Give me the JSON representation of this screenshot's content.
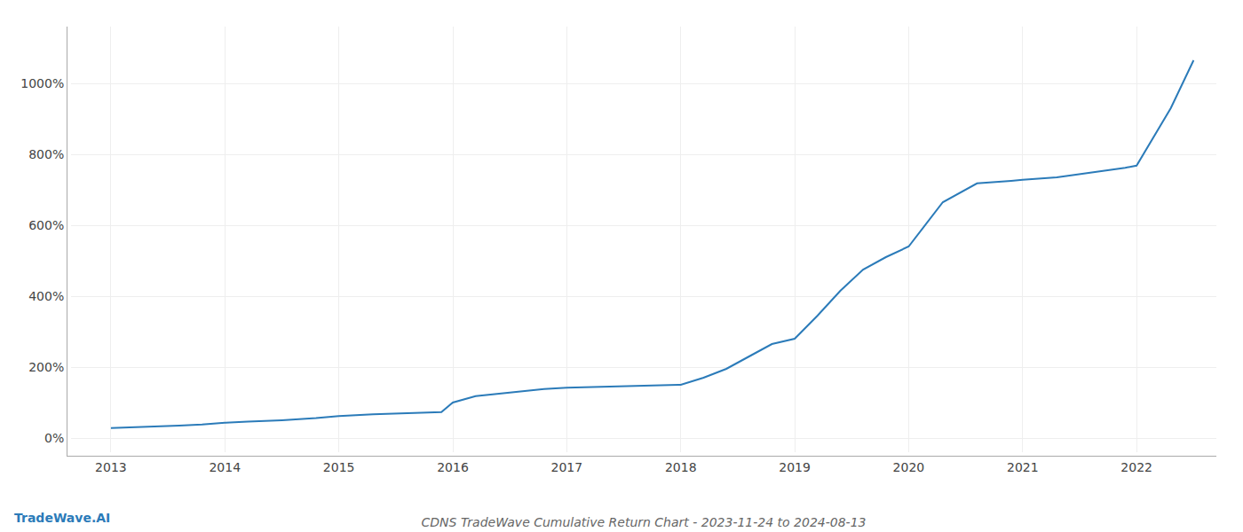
{
  "chart_data": {
    "type": "line",
    "title": "CDNS TradeWave Cumulative Return Chart - 2023-11-24 to 2024-08-13",
    "annotations": [
      {
        "text": "TradeWave.AI"
      }
    ],
    "color": "#2b7bb9",
    "grid": true,
    "x": [
      2013.0,
      2013.1,
      2013.2,
      2013.4,
      2013.6,
      2013.8,
      2014.0,
      2014.2,
      2014.5,
      2014.8,
      2015.0,
      2015.3,
      2015.6,
      2015.9,
      2016.0,
      2016.2,
      2016.5,
      2016.8,
      2017.0,
      2017.3,
      2017.6,
      2017.9,
      2018.0,
      2018.2,
      2018.4,
      2018.6,
      2018.8,
      2019.0,
      2019.2,
      2019.4,
      2019.6,
      2019.8,
      2020.0,
      2020.3,
      2020.6,
      2020.9,
      2021.0,
      2021.3,
      2021.6,
      2021.9,
      2022.0,
      2022.3,
      2022.5
    ],
    "values": [
      28,
      29,
      30,
      32,
      35,
      38,
      43,
      46,
      50,
      56,
      62,
      67,
      70,
      73,
      100,
      118,
      128,
      138,
      142,
      144,
      146,
      148,
      150,
      170,
      195,
      230,
      265,
      280,
      345,
      415,
      475,
      510,
      540,
      665,
      718,
      725,
      728,
      735,
      748,
      762,
      768,
      930,
      1065
    ],
    "xlim": [
      2012.65,
      2022.7
    ],
    "xticks": [
      2013,
      2014,
      2015,
      2016,
      2017,
      2018,
      2019,
      2020,
      2021,
      2022
    ],
    "ylim": [
      -40,
      1160
    ],
    "yticks": [
      {
        "value": 0,
        "label": "0%"
      },
      {
        "value": 200,
        "label": "200%"
      },
      {
        "value": 400,
        "label": "400%"
      },
      {
        "value": 600,
        "label": "600%"
      },
      {
        "value": 800,
        "label": "800%"
      },
      {
        "value": 1000,
        "label": "1000%"
      }
    ]
  }
}
